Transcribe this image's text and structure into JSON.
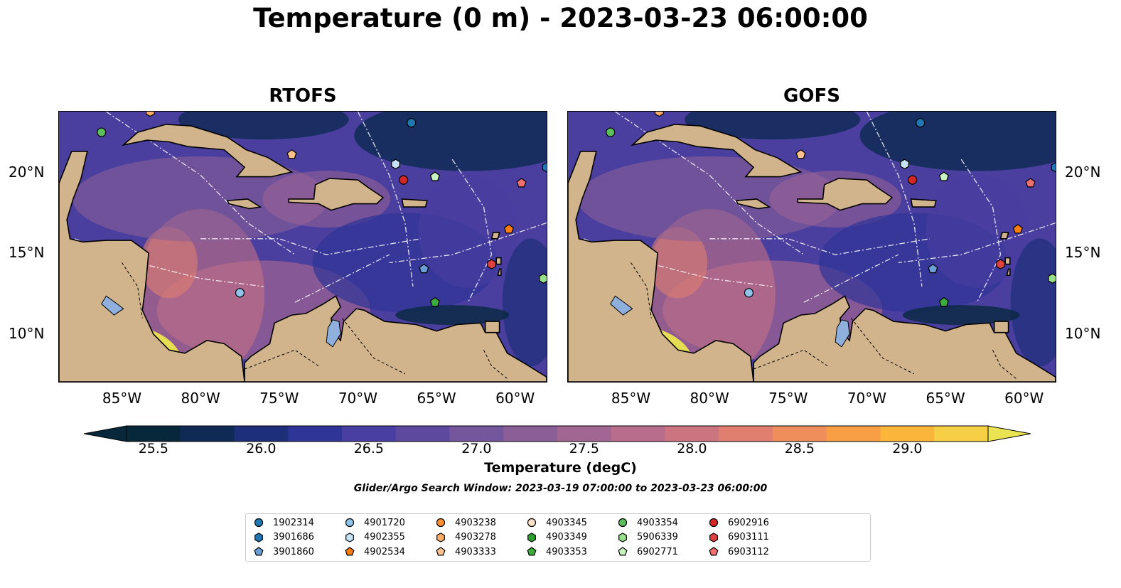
{
  "title": "Temperature (0 m) - 2023-03-23 06:00:00",
  "panels": [
    {
      "title": "RTOFS"
    },
    {
      "title": "GOFS"
    }
  ],
  "x_ticks": [
    "85°W",
    "80°W",
    "75°W",
    "70°W",
    "65°W",
    "60°W"
  ],
  "y_ticks": [
    "20°N",
    "15°N",
    "10°N"
  ],
  "colorbar": {
    "label": "Temperature (degC)",
    "ticks": [
      "25.5",
      "26.0",
      "26.5",
      "27.0",
      "27.5",
      "28.0",
      "28.5",
      "29.0"
    ],
    "colors": [
      "#06283a",
      "#0f2a55",
      "#1e2f7a",
      "#2f3597",
      "#493ea2",
      "#5d4a9f",
      "#73569c",
      "#8a5f98",
      "#a26693",
      "#b86d8c",
      "#cd7481",
      "#e07e70",
      "#ef8d5b",
      "#f89f45",
      "#fbb53a",
      "#f6cf46",
      "#ebe452"
    ],
    "extend": "both"
  },
  "search_window": "Glider/Argo Search Window: 2023-03-19 07:00:00 to 2023-03-23 06:00:00",
  "map": {
    "extent": {
      "lon": [
        -89,
        -58
      ],
      "lat": [
        7,
        24
      ]
    },
    "land_color": "#d2b48c",
    "ocean_base": "#4a3f9f"
  },
  "legend": [
    {
      "id": "1902314",
      "marker": "circle",
      "color": "#1f77b4"
    },
    {
      "id": "3901686",
      "marker": "hexagon",
      "color": "#1f77b4"
    },
    {
      "id": "3901860",
      "marker": "pentagon",
      "color": "#6aa0d6"
    },
    {
      "id": "4901720",
      "marker": "circle",
      "color": "#8fc3ea"
    },
    {
      "id": "4902355",
      "marker": "hexagon",
      "color": "#c6e2f7"
    },
    {
      "id": "4902534",
      "marker": "pentagon",
      "color": "#ff7f0e"
    },
    {
      "id": "4903238",
      "marker": "circle",
      "color": "#ff8f30"
    },
    {
      "id": "4903278",
      "marker": "hexagon",
      "color": "#ffae6a"
    },
    {
      "id": "4903333",
      "marker": "pentagon",
      "color": "#ffc28f"
    },
    {
      "id": "4903345",
      "marker": "circle",
      "color": "#fde0c8"
    },
    {
      "id": "4903349",
      "marker": "hexagon",
      "color": "#2ca02c"
    },
    {
      "id": "4903353",
      "marker": "pentagon",
      "color": "#3dae3d"
    },
    {
      "id": "4903354",
      "marker": "circle",
      "color": "#5cbf5c"
    },
    {
      "id": "5906339",
      "marker": "hexagon",
      "color": "#98df8a"
    },
    {
      "id": "6902771",
      "marker": "pentagon",
      "color": "#c9f2c0"
    },
    {
      "id": "6902916",
      "marker": "circle",
      "color": "#d62728"
    },
    {
      "id": "6903111",
      "marker": "hexagon",
      "color": "#e0403f"
    },
    {
      "id": "6903112",
      "marker": "pentagon",
      "color": "#f07070"
    }
  ],
  "observations": [
    {
      "id": "1902314",
      "lon": -66.6,
      "lat": 23.3
    },
    {
      "id": "3901686",
      "lon": -58.0,
      "lat": 20.5
    },
    {
      "id": "3901860",
      "lon": -65.8,
      "lat": 14.1
    },
    {
      "id": "4901720",
      "lon": -77.5,
      "lat": 12.6
    },
    {
      "id": "4902355",
      "lon": -67.6,
      "lat": 20.7
    },
    {
      "id": "4902534",
      "lon": -60.4,
      "lat": 16.6
    },
    {
      "id": "4903278",
      "lon": -83.2,
      "lat": 24.0
    },
    {
      "id": "4903333",
      "lon": -74.2,
      "lat": 21.3
    },
    {
      "id": "4903353",
      "lon": -65.1,
      "lat": 12.0
    },
    {
      "id": "4903354",
      "lon": -86.3,
      "lat": 22.7
    },
    {
      "id": "5906339",
      "lon": -58.2,
      "lat": 13.5
    },
    {
      "id": "6902771",
      "lon": -65.1,
      "lat": 19.9
    },
    {
      "id": "6902916",
      "lon": -67.1,
      "lat": 19.7
    },
    {
      "id": "6903111",
      "lon": -61.5,
      "lat": 14.4
    },
    {
      "id": "6903112",
      "lon": -59.6,
      "lat": 19.5
    }
  ]
}
